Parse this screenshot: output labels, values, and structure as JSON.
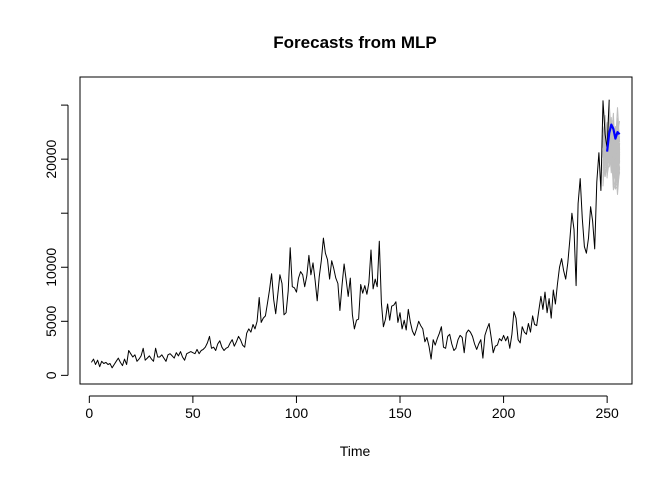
{
  "chart_data": {
    "type": "line",
    "title": "Forecasts from MLP",
    "xlabel": "Time",
    "ylabel": "",
    "xlim": [
      -4.5,
      262
    ],
    "ylim": [
      -800,
      27600
    ],
    "x_ticks": [
      0,
      50,
      100,
      150,
      200,
      250
    ],
    "y_ticks": [
      0,
      5000,
      10000,
      15000,
      20000,
      25000
    ],
    "y_tick_labels": [
      "0",
      "5000",
      "10000",
      "",
      "20000",
      ""
    ],
    "grid": false,
    "colors": {
      "history": "#000000",
      "simulations": "#bebebe",
      "forecast": "#0000ff"
    },
    "series": [
      {
        "role": "history",
        "x_start": 1,
        "values": [
          1200,
          1500,
          1000,
          1400,
          800,
          1300,
          1100,
          1200,
          1000,
          1100,
          700,
          1000,
          1300,
          1600,
          1200,
          900,
          1500,
          1000,
          2300,
          2000,
          1700,
          1900,
          1300,
          1500,
          1800,
          2500,
          1400,
          1600,
          1800,
          1500,
          1300,
          2500,
          1700,
          1700,
          1900,
          1600,
          1300,
          1900,
          2000,
          1800,
          1600,
          2100,
          1800,
          2200,
          1700,
          1400,
          2000,
          2100,
          2200,
          2100,
          2000,
          2400,
          2000,
          2300,
          2400,
          2600,
          3000,
          3600,
          2500,
          2600,
          2300,
          2900,
          3200,
          2600,
          2300,
          2500,
          2600,
          3000,
          3300,
          2700,
          3100,
          3600,
          3300,
          2800,
          2600,
          3900,
          4300,
          4000,
          4700,
          4300,
          5000,
          7200,
          4900,
          5300,
          5500,
          6700,
          7900,
          9400,
          7000,
          5700,
          7500,
          9300,
          8500,
          5600,
          5800,
          7800,
          11800,
          8200,
          8100,
          7700,
          9000,
          9600,
          9300,
          8200,
          9200,
          11100,
          9300,
          10400,
          8800,
          6900,
          9100,
          10600,
          12700,
          11300,
          10700,
          8900,
          10600,
          9900,
          9000,
          8500,
          6000,
          8300,
          10300,
          8800,
          7300,
          9000,
          5600,
          4300,
          5100,
          5200,
          8400,
          7600,
          8300,
          7500,
          8600,
          11600,
          8000,
          8900,
          8200,
          12400,
          6700,
          4500,
          5200,
          6600,
          5100,
          6400,
          6500,
          6800,
          4900,
          5800,
          4300,
          5100,
          4200,
          6100,
          4900,
          4100,
          3700,
          4300,
          5000,
          4600,
          4300,
          3100,
          3500,
          2700,
          1500,
          3300,
          2800,
          3400,
          3900,
          4500,
          2600,
          2500,
          3600,
          3800,
          2900,
          2300,
          2500,
          3300,
          3700,
          3500,
          2100,
          3900,
          4200,
          4000,
          3600,
          2900,
          2400,
          2900,
          3300,
          1600,
          3700,
          4300,
          4800,
          3500,
          2100,
          2700,
          2800,
          3400,
          3200,
          3700,
          3200,
          3600,
          2500,
          3800,
          5900,
          5300,
          3300,
          3000,
          4500,
          4000,
          3800,
          4800,
          4000,
          5500,
          4700,
          4600,
          6000,
          7300,
          6100,
          7700,
          5800,
          7100,
          5300,
          7900,
          6600,
          8400,
          10000,
          10800,
          9700,
          8900,
          10400,
          12600,
          15000,
          13500,
          8300,
          15900,
          18200,
          14500,
          11900,
          11300,
          12700,
          15600,
          14300,
          11700,
          17900,
          20600,
          17100,
          25400,
          22300,
          21000,
          25500
        ]
      },
      {
        "role": "forecast",
        "x_start": 250,
        "values": [
          20700,
          22400,
          23200,
          22800,
          21900,
          22500,
          22300
        ]
      }
    ],
    "simulation_band": {
      "x": [
        248,
        249,
        250,
        251,
        252,
        253,
        254,
        255,
        256
      ],
      "lower": [
        16300,
        17200,
        17500,
        18300,
        17600,
        16100,
        15300,
        15700,
        16200
      ],
      "upper": [
        24800,
        25600,
        24900,
        26000,
        25500,
        25200,
        24800,
        25600,
        24500
      ]
    }
  }
}
